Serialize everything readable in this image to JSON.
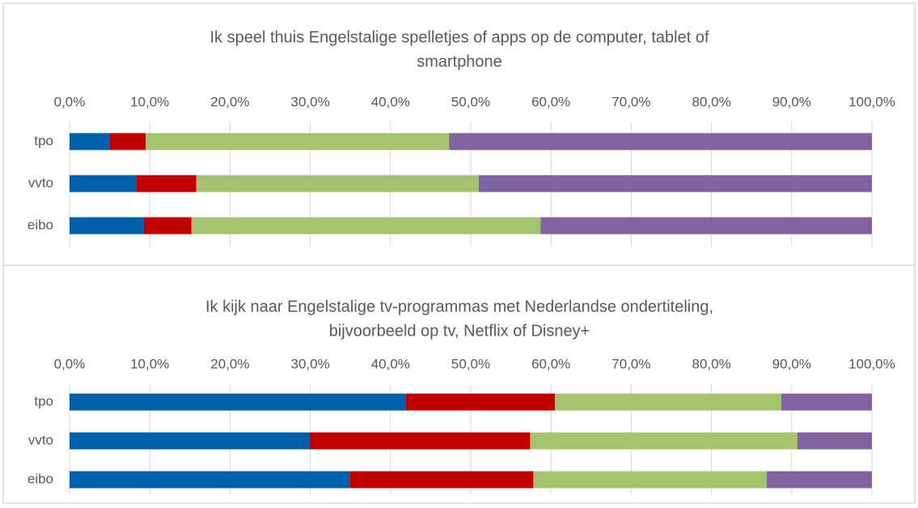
{
  "chart_data": [
    {
      "type": "bar",
      "orientation": "horizontal",
      "stacked": true,
      "title": [
        "Ik speel thuis Engelstalige spelletjes of apps op de computer, tablet of",
        "smartphone"
      ],
      "categories": [
        "tpo",
        "vvto",
        "eibo"
      ],
      "series": [
        {
          "color": "#005fa8",
          "values": [
            5.0,
            8.3,
            9.2
          ]
        },
        {
          "color": "#c00000",
          "values": [
            4.5,
            7.5,
            6.0
          ]
        },
        {
          "color": "#a5c36f",
          "values": [
            37.8,
            35.2,
            43.5
          ]
        },
        {
          "color": "#8064a2",
          "values": [
            52.7,
            49.0,
            41.3
          ]
        }
      ],
      "xlim": [
        0,
        100
      ],
      "xticks": [
        {
          "value": 0,
          "label": "0,0%"
        },
        {
          "value": 10,
          "label": "10,0%"
        },
        {
          "value": 20,
          "label": "20,0%"
        },
        {
          "value": 30,
          "label": "30,0%"
        },
        {
          "value": 40,
          "label": "40,0%"
        },
        {
          "value": 50,
          "label": "50,0%"
        },
        {
          "value": 60,
          "label": "60,0%"
        },
        {
          "value": 70,
          "label": "70,0%"
        },
        {
          "value": 80,
          "label": "80,0%"
        },
        {
          "value": 90,
          "label": "90,0%"
        },
        {
          "value": 100,
          "label": "100,0%"
        }
      ],
      "grid": true
    },
    {
      "type": "bar",
      "orientation": "horizontal",
      "stacked": true,
      "title": [
        "Ik kijk naar Engelstalige tv-programmas met Nederlandse ondertiteling,",
        "bijvoorbeeld op tv, Netflix of Disney+"
      ],
      "categories": [
        "tpo",
        "vvto",
        "eibo"
      ],
      "series": [
        {
          "color": "#005fa8",
          "values": [
            41.9,
            29.9,
            34.9
          ]
        },
        {
          "color": "#c00000",
          "values": [
            18.6,
            27.5,
            22.9
          ]
        },
        {
          "color": "#a5c36f",
          "values": [
            28.2,
            33.3,
            29.1
          ]
        },
        {
          "color": "#8064a2",
          "values": [
            11.3,
            9.3,
            13.1
          ]
        }
      ],
      "xlim": [
        0,
        100
      ],
      "xticks": [
        {
          "value": 0,
          "label": "0,0%"
        },
        {
          "value": 10,
          "label": "10,0%"
        },
        {
          "value": 20,
          "label": "20,0%"
        },
        {
          "value": 30,
          "label": "30,0%"
        },
        {
          "value": 40,
          "label": "40,0%"
        },
        {
          "value": 50,
          "label": "50,0%"
        },
        {
          "value": 60,
          "label": "60,0%"
        },
        {
          "value": 70,
          "label": "70,0%"
        },
        {
          "value": 80,
          "label": "80,0%"
        },
        {
          "value": 90,
          "label": "90,0%"
        },
        {
          "value": 100,
          "label": "100,0%"
        }
      ],
      "grid": true
    }
  ]
}
